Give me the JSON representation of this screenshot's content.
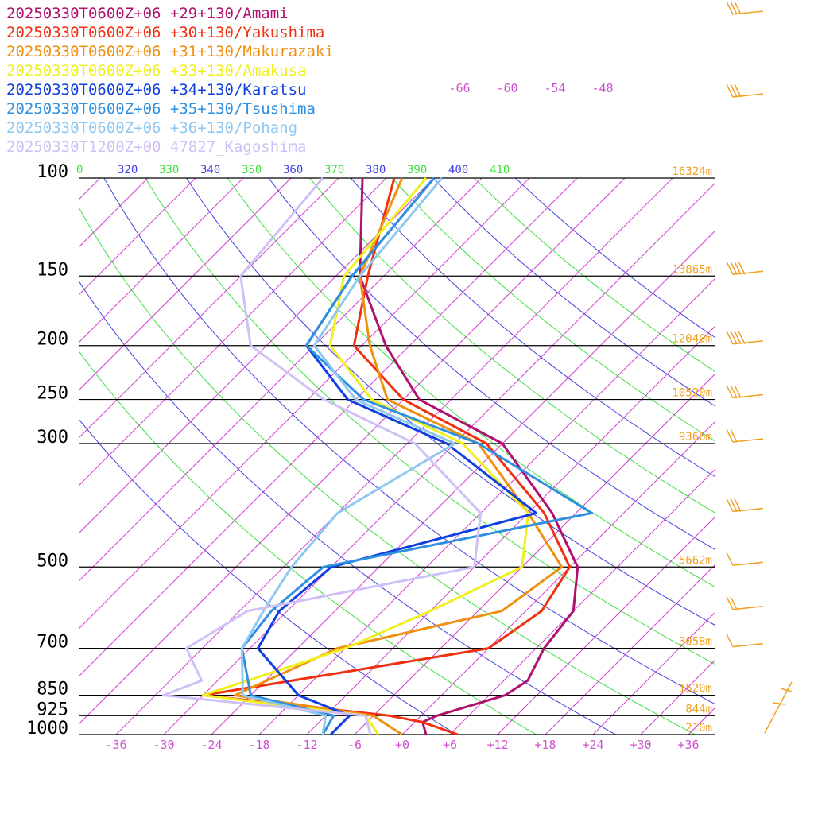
{
  "chart_data": {
    "type": "line",
    "title": "",
    "xlabel": "",
    "ylabel": "",
    "pressure_levels": [
      "100",
      "150",
      "200",
      "250",
      "300",
      "500",
      "700",
      "850",
      "925",
      "1000"
    ],
    "temperature_ticks": [
      "-36",
      "-30",
      "-24",
      "-18",
      "-12",
      "-6",
      "+0",
      "+6",
      "+12",
      "+18",
      "+24",
      "+30",
      "+36"
    ],
    "upper_temperature_ticks": [
      "-66",
      "-60",
      "-54",
      "-48"
    ],
    "theta_labels": [
      {
        "text": "0",
        "color": "#40e040"
      },
      {
        "text": "320",
        "color": "#4040e0"
      },
      {
        "text": "330",
        "color": "#40e040"
      },
      {
        "text": "340",
        "color": "#4040e0"
      },
      {
        "text": "350",
        "color": "#40e040"
      },
      {
        "text": "360",
        "color": "#4040e0"
      },
      {
        "text": "370",
        "color": "#40e040"
      },
      {
        "text": "380",
        "color": "#4040e0"
      },
      {
        "text": "390",
        "color": "#40e040"
      },
      {
        "text": "400",
        "color": "#4040e0"
      },
      {
        "text": "410",
        "color": "#40e040"
      }
    ],
    "height_labels": [
      {
        "p": 100,
        "text": "16324m"
      },
      {
        "p": 150,
        "text": "13865m"
      },
      {
        "p": 200,
        "text": "12040m"
      },
      {
        "p": 250,
        "text": "10520m"
      },
      {
        "p": 300,
        "text": "9366m"
      },
      {
        "p": 500,
        "text": "5662m"
      },
      {
        "p": 700,
        "text": "3058m"
      },
      {
        "p": 850,
        "text": "1520m"
      },
      {
        "p": 925,
        "text": "844m"
      },
      {
        "p": 1000,
        "text": "210m"
      }
    ],
    "series": [
      {
        "name": "20250330T0600Z+06 +29+130/Amami",
        "color": "#b01070",
        "points": [
          [
            1000,
            3
          ],
          [
            950,
            1
          ],
          [
            925,
            2
          ],
          [
            850,
            8
          ],
          [
            800,
            9
          ],
          [
            700,
            7
          ],
          [
            600,
            6
          ],
          [
            500,
            1
          ],
          [
            400,
            -9
          ],
          [
            300,
            -24
          ],
          [
            250,
            -40
          ],
          [
            200,
            -51
          ],
          [
            150,
            -63
          ],
          [
            100,
            -75
          ]
        ]
      },
      {
        "name": "20250330T0600Z+06 +30+130/Yakushima",
        "color": "#f03010",
        "points": [
          [
            1000,
            7
          ],
          [
            950,
            1
          ],
          [
            925,
            -4
          ],
          [
            850,
            -30
          ],
          [
            700,
            0
          ],
          [
            600,
            2
          ],
          [
            500,
            0
          ],
          [
            400,
            -10
          ],
          [
            300,
            -26
          ],
          [
            250,
            -42
          ],
          [
            200,
            -55
          ],
          [
            150,
            -62
          ],
          [
            100,
            -71
          ]
        ]
      },
      {
        "name": "20250330T0600Z+06 +31+130/Makurazaki",
        "color": "#f09010",
        "points": [
          [
            1000,
            0
          ],
          [
            950,
            -4
          ],
          [
            925,
            -6
          ],
          [
            850,
            -26
          ],
          [
            700,
            -19
          ],
          [
            600,
            -3
          ],
          [
            500,
            -1
          ],
          [
            400,
            -12
          ],
          [
            300,
            -27
          ],
          [
            250,
            -44
          ],
          [
            200,
            -53
          ],
          [
            150,
            -63
          ],
          [
            100,
            -70
          ]
        ]
      },
      {
        "name": "20250330T0600Z+06 +33+130/Amakusa",
        "color": "#f0f020",
        "points": [
          [
            1000,
            -3
          ],
          [
            925,
            -7
          ],
          [
            850,
            -30
          ],
          [
            700,
            -18
          ],
          [
            600,
            -12
          ],
          [
            500,
            -6
          ],
          [
            400,
            -12
          ],
          [
            300,
            -29
          ],
          [
            250,
            -46
          ],
          [
            200,
            -58
          ],
          [
            150,
            -65
          ],
          [
            100,
            -67
          ]
        ]
      },
      {
        "name": "20250330T0600Z+06 +34+130/Karatsu",
        "color": "#1040e0",
        "points": [
          [
            1000,
            -9
          ],
          [
            925,
            -9
          ],
          [
            850,
            -18
          ],
          [
            700,
            -29
          ],
          [
            600,
            -31
          ],
          [
            500,
            -30
          ],
          [
            400,
            -11
          ],
          [
            300,
            -31
          ],
          [
            250,
            -49
          ],
          [
            200,
            -61
          ],
          [
            150,
            -64
          ],
          [
            100,
            -66
          ]
        ]
      },
      {
        "name": "20250330T0600Z+06 +35+130/Tsushima",
        "color": "#3090e0",
        "points": [
          [
            1000,
            -10
          ],
          [
            925,
            -11
          ],
          [
            850,
            -24
          ],
          [
            700,
            -31
          ],
          [
            600,
            -32
          ],
          [
            500,
            -31
          ],
          [
            400,
            -4
          ],
          [
            300,
            -27
          ],
          [
            250,
            -47
          ],
          [
            200,
            -61
          ],
          [
            150,
            -64
          ],
          [
            100,
            -66
          ]
        ]
      },
      {
        "name": "20250330T0600Z+06 +36+130/Pohang",
        "color": "#90c8f0",
        "points": [
          [
            1000,
            -10
          ],
          [
            925,
            -12
          ],
          [
            850,
            -25
          ],
          [
            700,
            -31
          ],
          [
            600,
            -33
          ],
          [
            500,
            -35
          ],
          [
            400,
            -36
          ],
          [
            300,
            -30
          ],
          [
            250,
            -48
          ],
          [
            200,
            -60
          ],
          [
            150,
            -63
          ],
          [
            100,
            -65
          ]
        ]
      },
      {
        "name": "20250330T1200Z+00 47827_Kagoshima",
        "color": "#d0c0f8",
        "points": [
          [
            1000,
            -4
          ],
          [
            925,
            -7
          ],
          [
            850,
            -35
          ],
          [
            800,
            -32
          ],
          [
            700,
            -38
          ],
          [
            600,
            -35
          ],
          [
            500,
            -12
          ],
          [
            400,
            -18
          ],
          [
            300,
            -35
          ],
          [
            250,
            -52
          ],
          [
            200,
            -68
          ],
          [
            150,
            -78
          ],
          [
            100,
            -80
          ]
        ]
      }
    ],
    "legend_position": "top-left"
  }
}
